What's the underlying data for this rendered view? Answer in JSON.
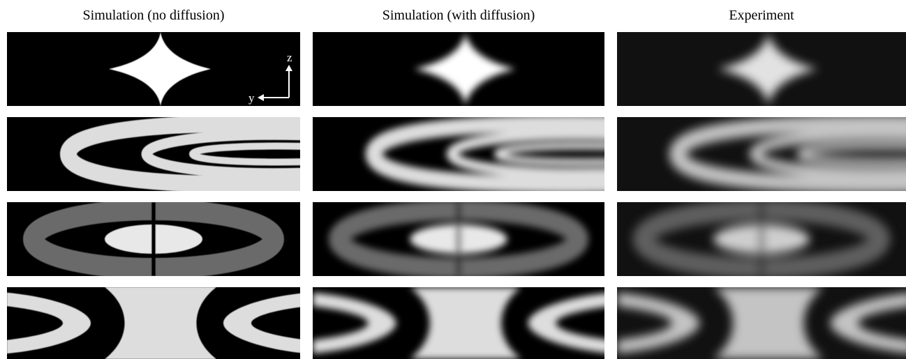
{
  "columns": {
    "titles": [
      "Simulation (no diffusion)",
      "Simulation (with diffusion)",
      "Experiment"
    ]
  },
  "axes": {
    "vertical": "z",
    "horizontal": "y"
  }
}
